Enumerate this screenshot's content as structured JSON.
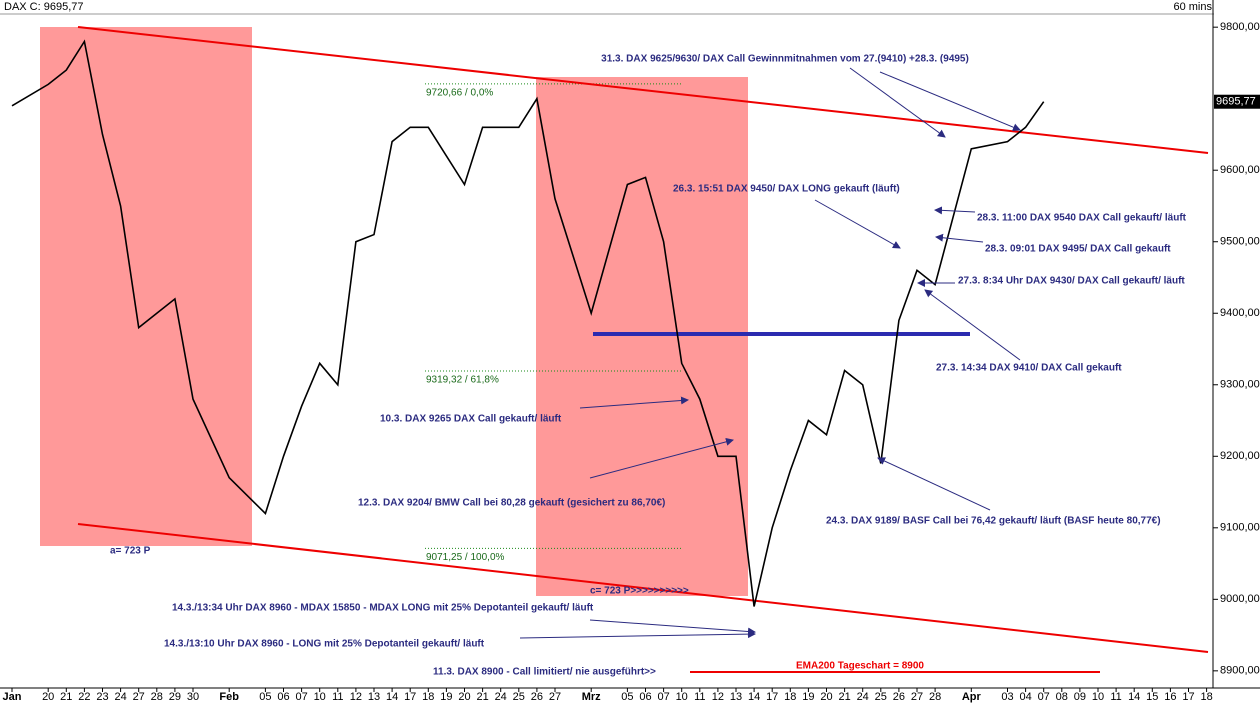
{
  "chart_data": {
    "type": "line",
    "title": "DAX C: 9695,77",
    "timeframe": "60 mins",
    "last_label": "9695,77",
    "color": "#000000",
    "categories": [
      "Jan",
      "20",
      "21",
      "22",
      "23",
      "24",
      "27",
      "28",
      "29",
      "30",
      "Feb",
      "05",
      "06",
      "07",
      "10",
      "11",
      "12",
      "13",
      "14",
      "17",
      "18",
      "19",
      "20",
      "21",
      "24",
      "25",
      "26",
      "27",
      "Mrz",
      "05",
      "06",
      "07",
      "10",
      "11",
      "12",
      "13",
      "14",
      "17",
      "18",
      "19",
      "20",
      "21",
      "24",
      "25",
      "26",
      "27",
      "28",
      "Apr",
      "03",
      "04",
      "07",
      "08",
      "09",
      "10",
      "11",
      "14",
      "15",
      "16",
      "17",
      "18"
    ],
    "values": [
      9690,
      9720,
      9740,
      9780,
      9650,
      9550,
      9380,
      9400,
      9420,
      9280,
      9170,
      9120,
      9200,
      9270,
      9330,
      9300,
      9500,
      9510,
      9640,
      9660,
      9660,
      9620,
      9580,
      9660,
      9660,
      9660,
      9700,
      9560,
      9400,
      9580,
      9590,
      9500,
      9330,
      9280,
      9200,
      9200,
      8990,
      9100,
      9180,
      9250,
      9230,
      9320,
      9300,
      9190,
      9390,
      9460,
      9440,
      9630,
      9640,
      9660,
      9695.77,
      null,
      null,
      null,
      null,
      null,
      null,
      null,
      null,
      null
    ],
    "ylim": [
      8876,
      9838
    ],
    "yticks": [
      {
        "value": 9800,
        "label": "9800,00"
      },
      {
        "value": 9600,
        "label": "9600,00"
      },
      {
        "value": 9500,
        "label": "9500,00"
      },
      {
        "value": 9400,
        "label": "9400,00"
      },
      {
        "value": 9300,
        "label": "9300,00"
      },
      {
        "value": 9200,
        "label": "9200,00"
      },
      {
        "value": 9100,
        "label": "9100,00"
      },
      {
        "value": 9000,
        "label": "9000,00"
      },
      {
        "value": 8900,
        "label": "8900,00"
      }
    ],
    "fib_levels": [
      {
        "value": 9720.66,
        "label": "9720,66 / 0,0%"
      },
      {
        "value": 9319.32,
        "label": "9319,32 / 61,8%"
      },
      {
        "value": 9071.25,
        "label": "9071,25 / 100,0%"
      }
    ],
    "annotations": [
      "31.3. DAX 9625/9630/ DAX Call Gewinnmitnahmen vom 27.(9410) +28.3. (9495)",
      "26.3. 15:51 DAX 9450/ DAX LONG gekauft (läuft)",
      "28.3. 11:00 DAX 9540 DAX Call gekauft/ läuft",
      "28.3. 09:01 DAX 9495/ DAX Call gekauft",
      "27.3. 8:34 Uhr DAX 9430/ DAX Call gekauft/ läuft",
      "27.3. 14:34 DAX 9410/ DAX Call gekauft",
      "10.3. DAX 9265 DAX Call gekauft/ läuft",
      "12.3. DAX 9204/ BMW Call bei 80,28 gekauft (gesichert zu 86,70€)",
      "24.3. DAX 9189/ BASF Call bei 76,42 gekauft/ läuft (BASF heute 80,77€)",
      "14.3./13:34 Uhr DAX 8960 - MDAX 15850 - MDAX LONG mit 25% Depotanteil gekauft/ läuft",
      "14.3./13:10 Uhr DAX 8960 - LONG mit 25% Depotanteil gekauft/ läuft",
      "11.3. DAX 8900 - Call limitiert/ nie ausgeführt>>",
      "a= 723 P",
      "c= 723 P>>>>>>>>>>"
    ],
    "ema_label": "EMA200 Tageschart = 8900"
  }
}
